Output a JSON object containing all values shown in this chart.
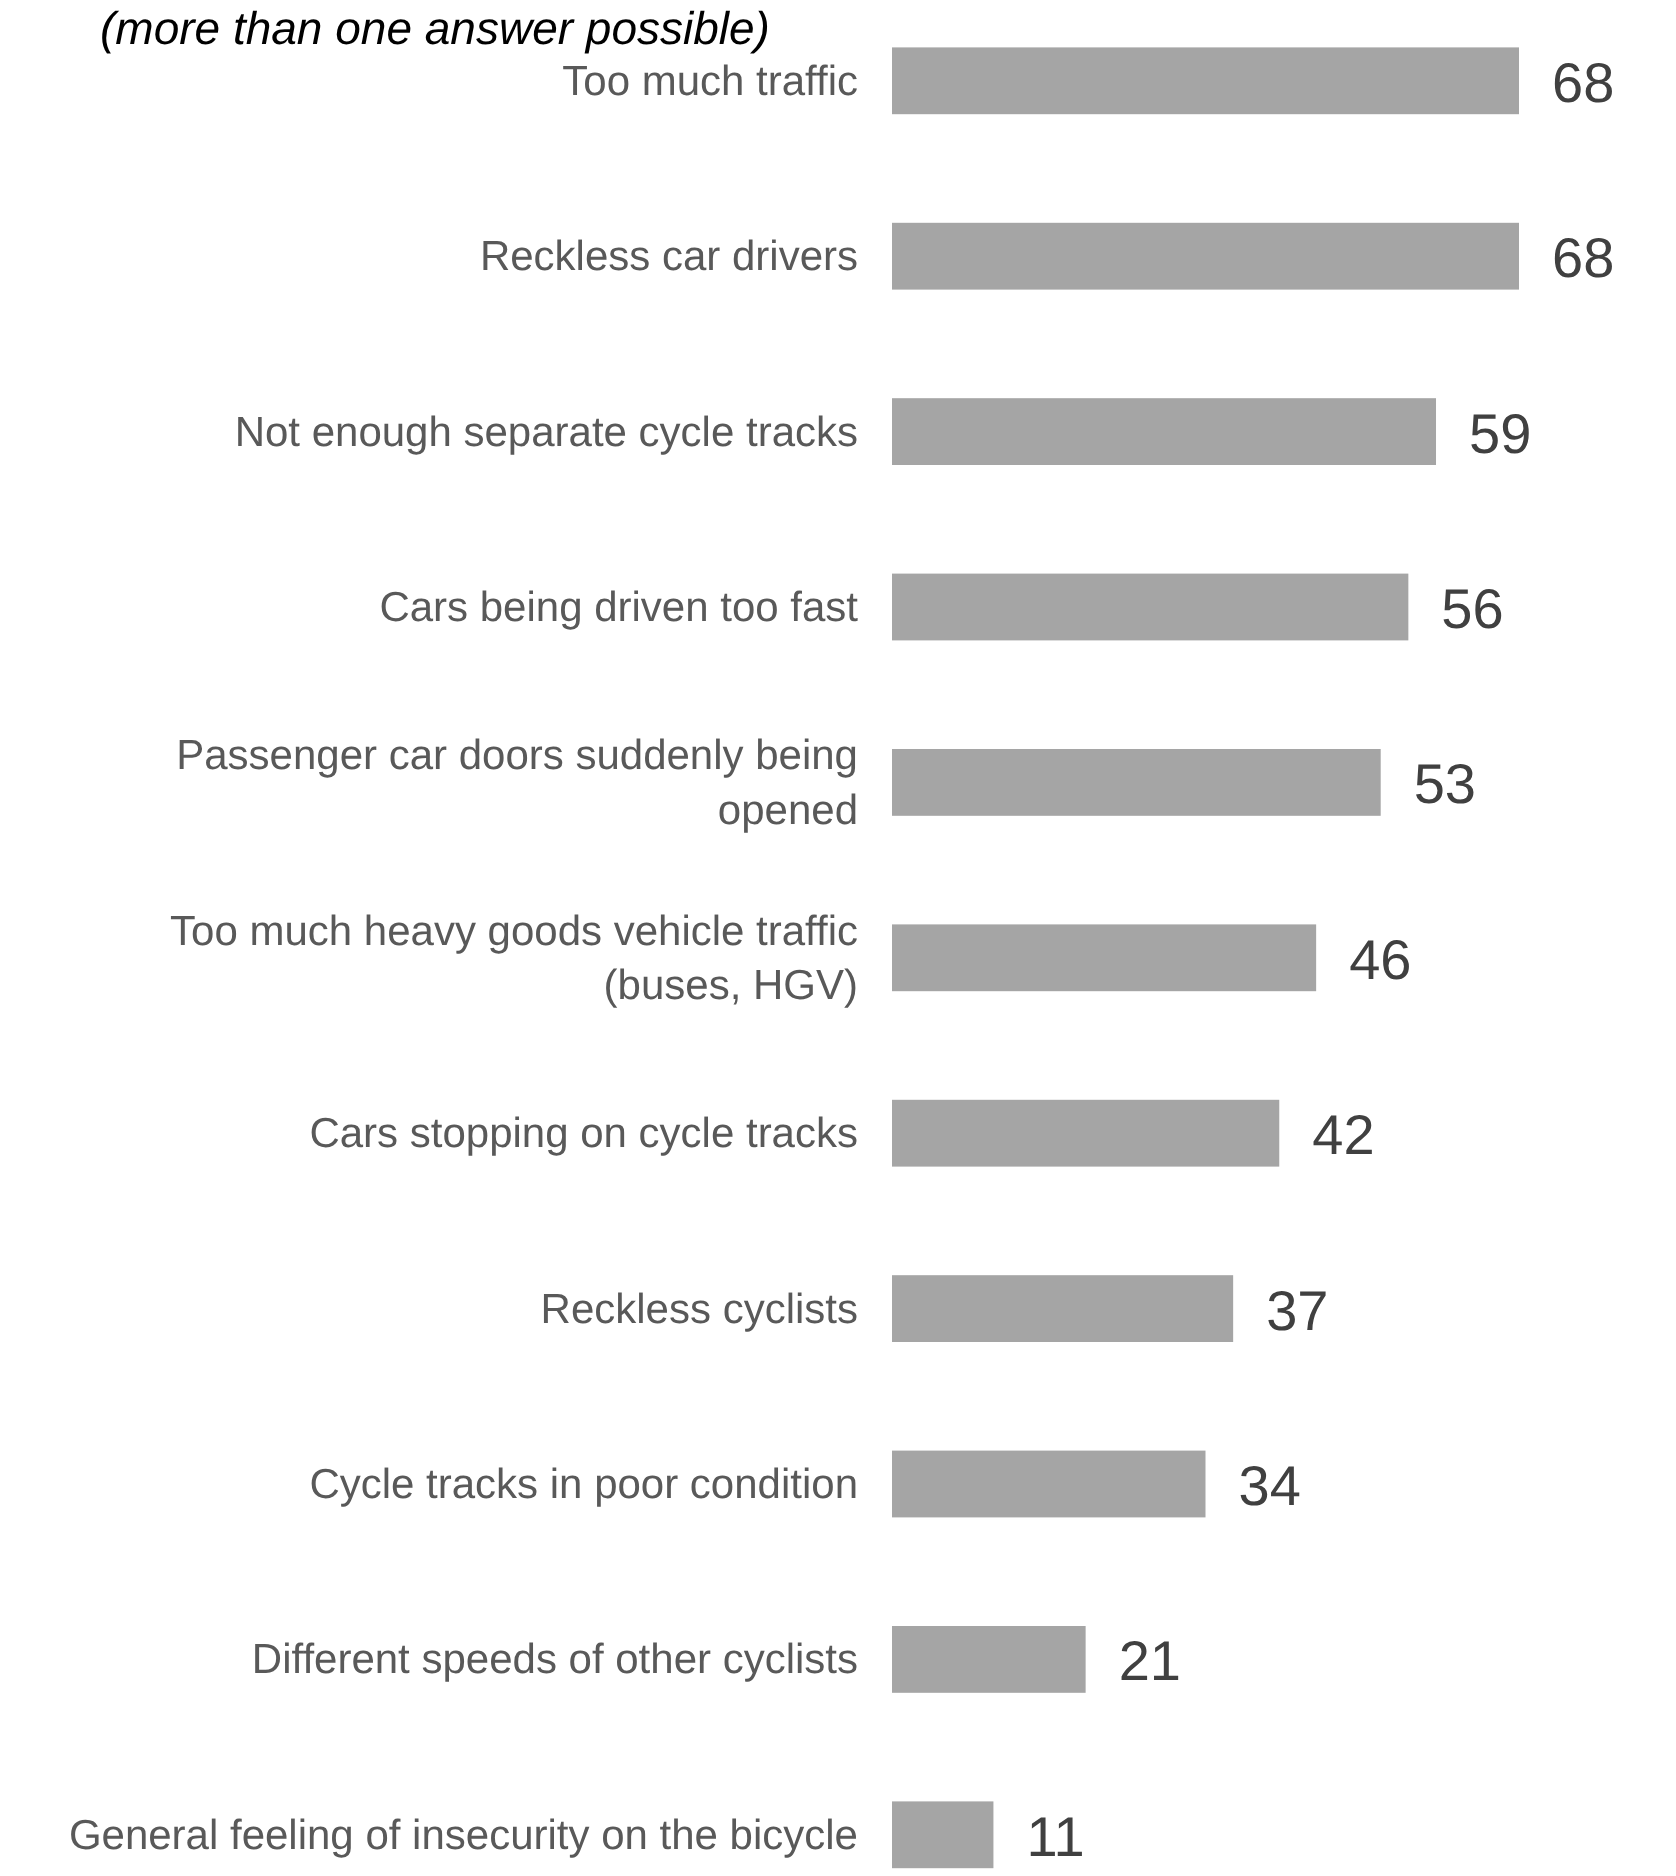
{
  "chart_data": {
    "type": "bar",
    "orientation": "horizontal",
    "subtitle": "(more than one answer possible)",
    "categories": [
      "Too much traffic",
      "Reckless car drivers",
      "Not enough separate cycle tracks",
      "Cars being driven too fast",
      "Passenger car doors suddenly being opened",
      "Too much heavy goods vehicle traffic (buses, HGV)",
      "Cars stopping on cycle tracks",
      "Reckless cyclists",
      "Cycle tracks in poor condition",
      "Different speeds of other cyclists",
      "General feeling of insecurity on the bicycle"
    ],
    "values": [
      68,
      68,
      59,
      56,
      53,
      46,
      42,
      37,
      34,
      21,
      11
    ],
    "color": "#a5a5a5",
    "data_labels": true
  }
}
